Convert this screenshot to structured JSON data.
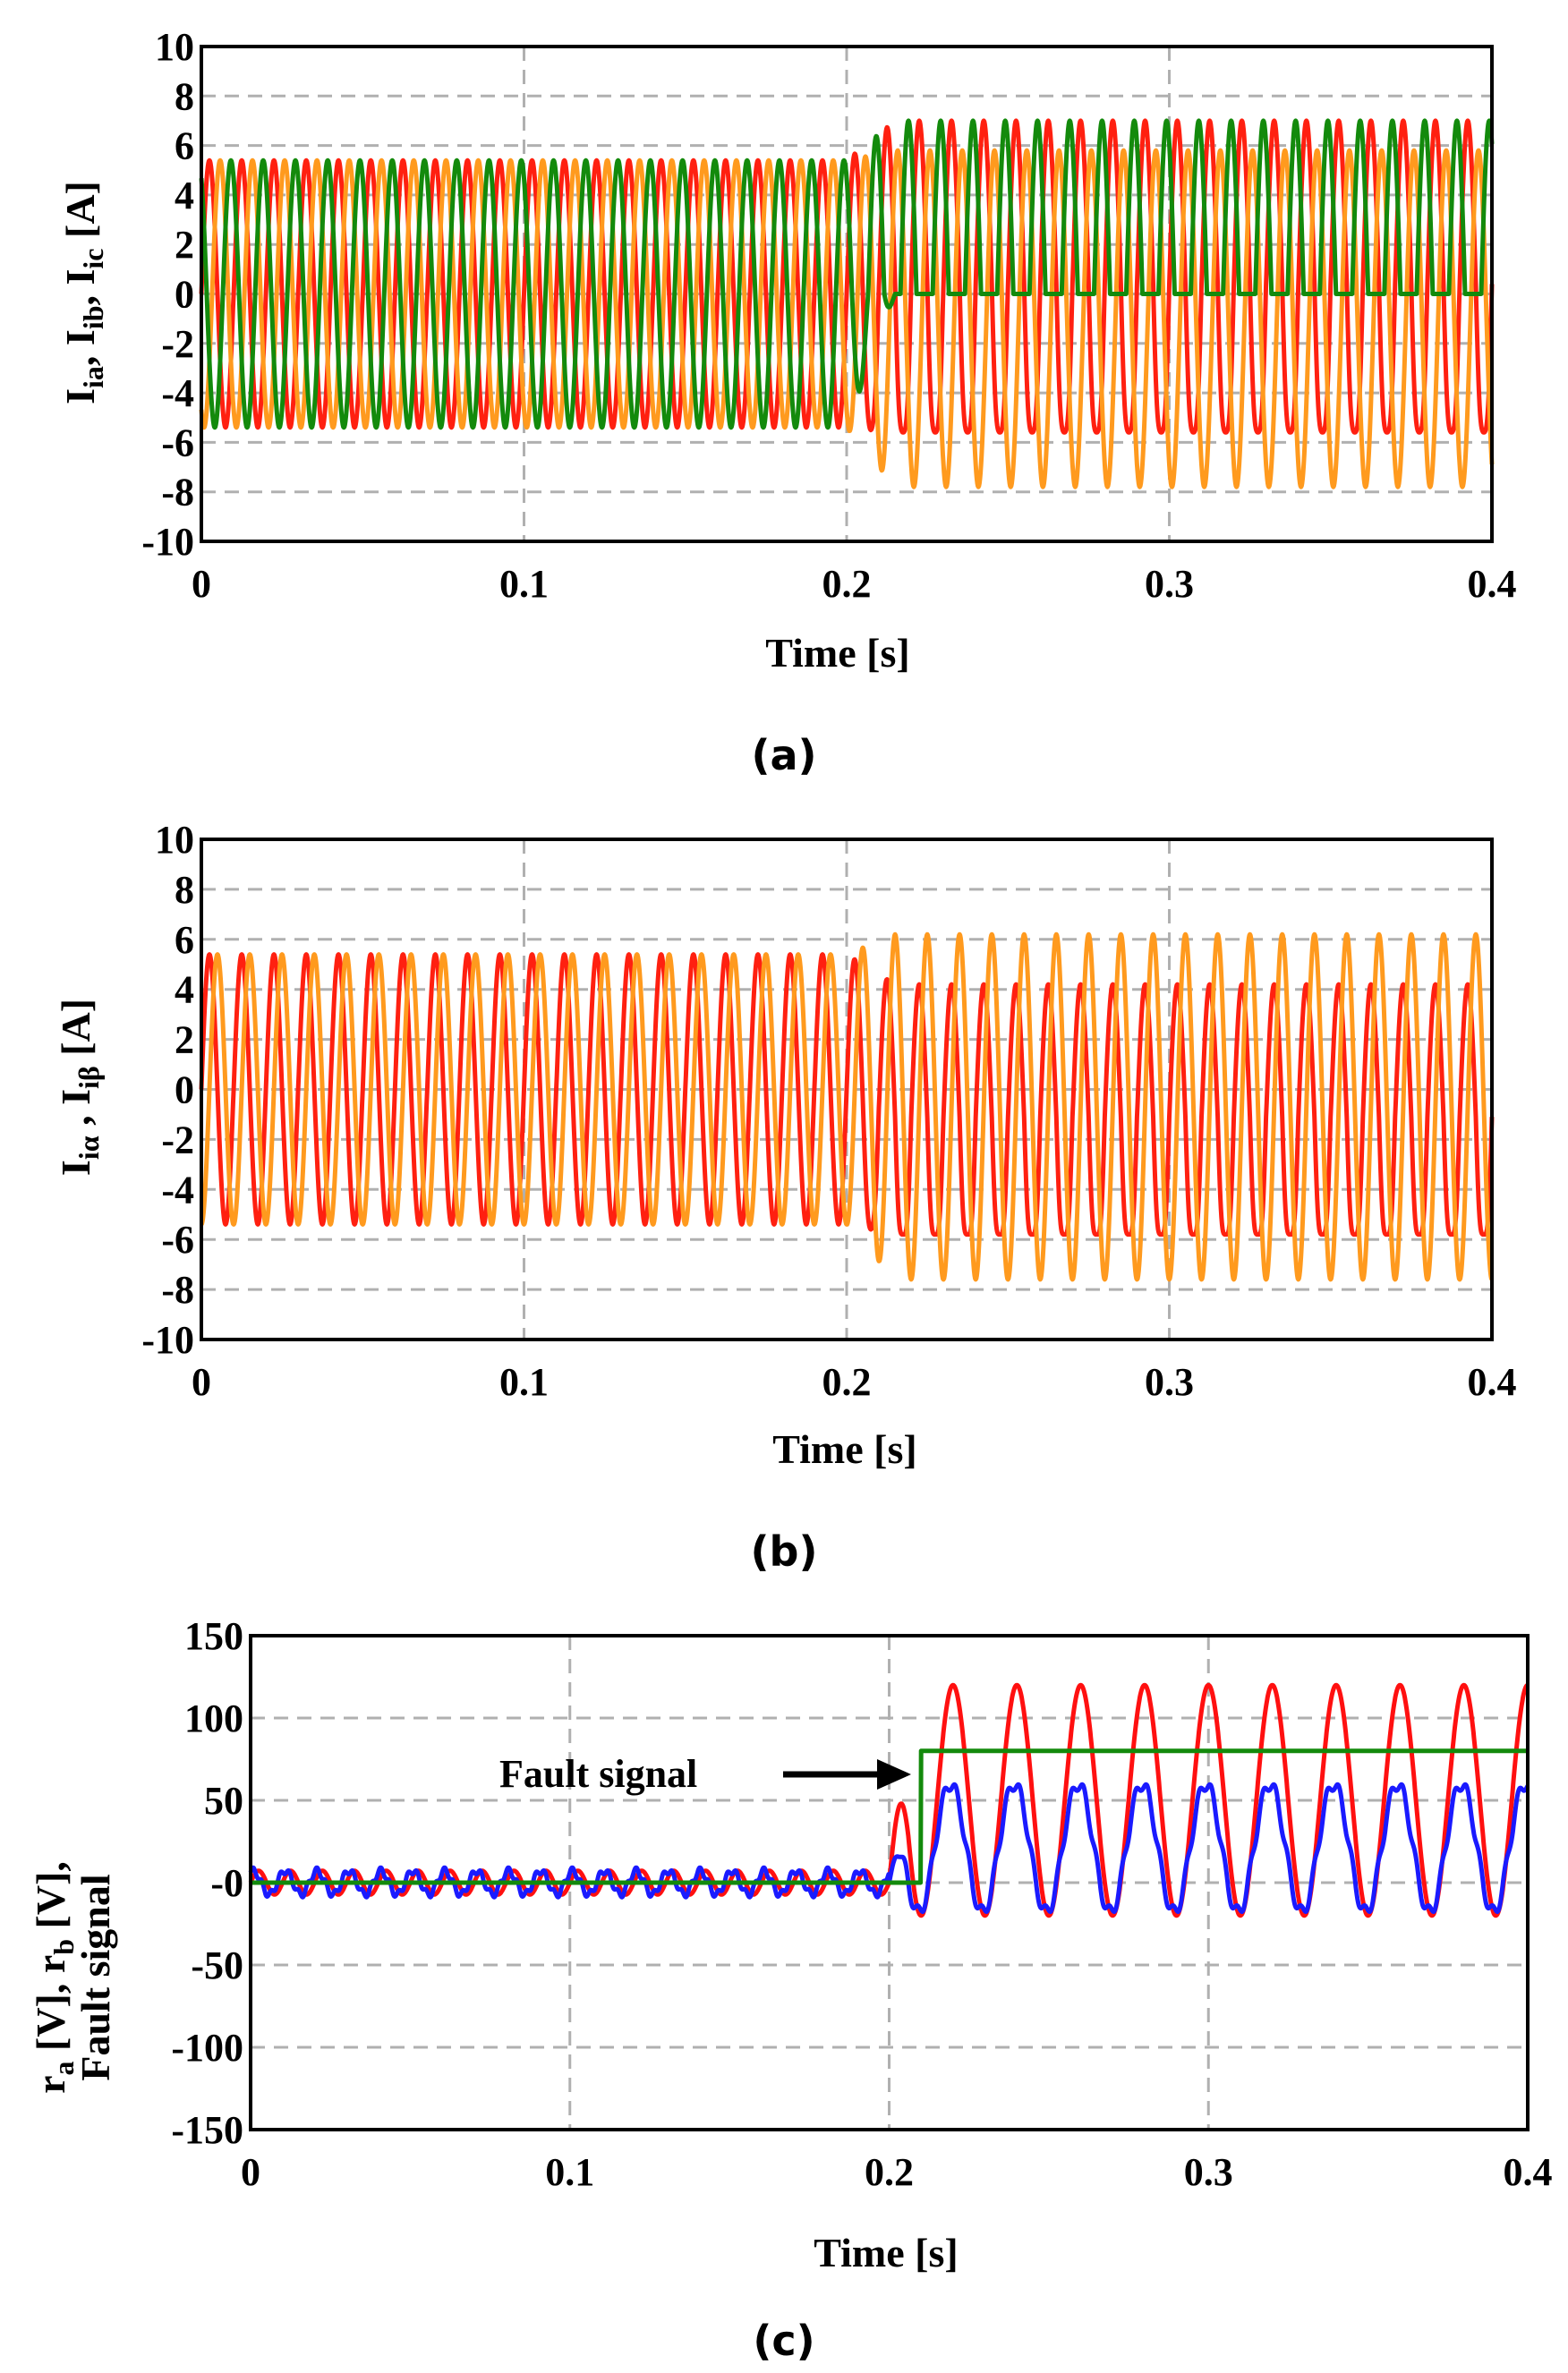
{
  "chart_data": [
    {
      "type": "line",
      "caption": "(a)",
      "xlabel": "Time [s]",
      "ylabel": "I_ia, I_ib, I_ic [A]",
      "ylabel_parts": {
        "main": "I",
        "sub_a": "ia",
        "sub_b": "ib",
        "sub_c": "ic",
        "unit": " [A]"
      },
      "xlim": [
        0,
        0.4
      ],
      "ylim": [
        -10,
        10
      ],
      "xticks": [
        "0",
        "0.1",
        "0.2",
        "0.3",
        "0.4"
      ],
      "xtick_values": [
        0,
        0.1,
        0.2,
        0.3,
        0.4
      ],
      "yticks": [
        "10",
        "8",
        "6",
        "4",
        "2",
        "0",
        "-2",
        "-4",
        "-6",
        "-8",
        "-10"
      ],
      "ytick_values": [
        10,
        8,
        6,
        4,
        2,
        0,
        -2,
        -4,
        -6,
        -8,
        -10
      ],
      "grid": true,
      "fault_time": 0.2,
      "frequency_hz": 100,
      "series": [
        {
          "name": "I_ia",
          "color": "#ff2010",
          "amplitude_before": 5.4,
          "phase_deg": 0,
          "after": {
            "max": 7.0,
            "min": -6.2
          }
        },
        {
          "name": "I_ib",
          "color": "#ff9a1e",
          "amplitude_before": 5.4,
          "phase_deg": -120,
          "after": {
            "max": 5.8,
            "min": -7.8
          }
        },
        {
          "name": "I_ic",
          "color": "#138a0c",
          "amplitude_before": 5.4,
          "phase_deg": 120,
          "after": {
            "max": 7.0,
            "min": 0
          }
        }
      ]
    },
    {
      "type": "line",
      "caption": "(b)",
      "xlabel": "Time [s]",
      "ylabel": "I_iα , I_iβ [A]",
      "ylabel_parts": {
        "main": "I",
        "sub_alpha": "iα",
        "sub_beta": "iβ",
        "unit": " [A]"
      },
      "xlim": [
        0,
        0.4
      ],
      "ylim": [
        -10,
        10
      ],
      "xticks": [
        "0",
        "0.1",
        "0.2",
        "0.3",
        "0.4"
      ],
      "xtick_values": [
        0,
        0.1,
        0.2,
        0.3,
        0.4
      ],
      "yticks": [
        "10",
        "8",
        "6",
        "4",
        "2",
        "0",
        "-2",
        "-4",
        "-6",
        "-8",
        "-10"
      ],
      "ytick_values": [
        10,
        8,
        6,
        4,
        2,
        0,
        -2,
        -4,
        -6,
        -8,
        -10
      ],
      "grid": true,
      "fault_time": 0.2,
      "frequency_hz": 100,
      "series": [
        {
          "name": "I_iα",
          "color": "#ff2010",
          "amplitude_before": 5.4,
          "phase_deg": 0,
          "after": {
            "max": 4.2,
            "min": -6.4
          }
        },
        {
          "name": "I_iβ",
          "color": "#ff9a1e",
          "amplitude_before": 5.4,
          "phase_deg": -90,
          "after": {
            "max": 6.2,
            "min": -7.6
          }
        }
      ]
    },
    {
      "type": "line",
      "caption": "(c)",
      "xlabel": "Time [s]",
      "ylabel_line1": "r_a [V], r_b [V],",
      "ylabel_line2": "Fault signal",
      "ylabel_parts": {
        "ra": "r",
        "ra_sub": "a",
        "rb": "r",
        "rb_sub": "b",
        "unit_a": " [V], ",
        "unit_b": " [V],",
        "line2": "Fault signal"
      },
      "xlim": [
        0,
        0.4
      ],
      "ylim": [
        -150,
        150
      ],
      "xticks": [
        "0",
        "0.1",
        "0.2",
        "0.3",
        "0.4"
      ],
      "xtick_values": [
        0,
        0.1,
        0.2,
        0.3,
        0.4
      ],
      "yticks": [
        "150",
        "100",
        "50",
        "-0",
        "-50",
        "-100",
        "-150"
      ],
      "ytick_values": [
        150,
        100,
        50,
        0,
        -50,
        -100,
        -150
      ],
      "grid": true,
      "fault_time": 0.2,
      "detect_time": 0.21,
      "frequency_hz": 50,
      "annotation": {
        "text": "Fault signal",
        "points_to": {
          "x": 0.205,
          "y": 80
        }
      },
      "series": [
        {
          "name": "r_a",
          "color": "#ff1010",
          "before": {
            "max": 8,
            "min": -8
          },
          "after": {
            "max": 120,
            "min": -20
          }
        },
        {
          "name": "r_b",
          "color": "#1a1aff",
          "before": {
            "max": 8,
            "min": -8
          },
          "after": {
            "max": 60,
            "min": -18
          }
        },
        {
          "name": "Fault signal",
          "color": "#138a0c",
          "before_value": 0,
          "after_value": 80
        }
      ]
    }
  ]
}
